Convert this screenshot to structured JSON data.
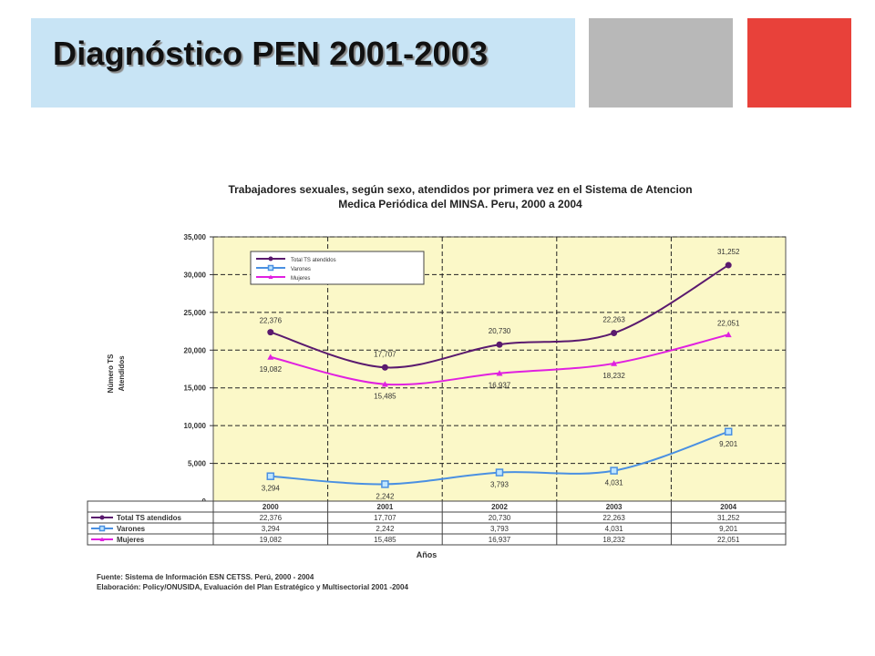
{
  "slide": {
    "title": "Diagnóstico PEN 2001-2003",
    "colors": {
      "title_box": "#c8e4f5",
      "gray_block": "#b8b8b8",
      "red_block": "#e8413a"
    }
  },
  "chart_data": {
    "type": "line",
    "title_line1": "Trabajadores sexuales, según sexo, atendidos por primera vez en el Sistema de Atencion",
    "title_line2": "Medica Periódica del MINSA. Peru, 2000 a 2004",
    "ylabel_line1": "Número TS",
    "ylabel_line2": "Atendidos",
    "xlabel": "Años",
    "ylim": [
      0,
      35000
    ],
    "yticks": [
      0,
      5000,
      10000,
      15000,
      20000,
      25000,
      30000,
      35000
    ],
    "ytick_labels": [
      "0",
      "5,000",
      "10,000",
      "15,000",
      "20,000",
      "25,000",
      "30,000",
      "35,000"
    ],
    "categories": [
      "2000",
      "2001",
      "2002",
      "2003",
      "2004"
    ],
    "grid": true,
    "legend_position": "top-left",
    "plot_background": "#fbf8c8",
    "series": [
      {
        "name": "Total TS atendidos",
        "color": "#5a1a6e",
        "marker": "circle",
        "values": [
          22376,
          17707,
          20730,
          22263,
          31252
        ],
        "labels": [
          "22,376",
          "17,707",
          "20,730",
          "22,263",
          "31,252"
        ]
      },
      {
        "name": "Varones",
        "color": "#4a90e2",
        "marker": "square",
        "values": [
          3294,
          2242,
          3793,
          4031,
          9201
        ],
        "labels": [
          "3,294",
          "2,242",
          "3,793",
          "4,031",
          "9,201"
        ]
      },
      {
        "name": "Mujeres",
        "color": "#e020e0",
        "marker": "triangle",
        "values": [
          19082,
          15485,
          16937,
          18232,
          22051
        ],
        "labels": [
          "19,082",
          "15,485",
          "16,937",
          "18,232",
          "22,051"
        ]
      }
    ]
  },
  "footnotes": {
    "source": "Fuente: Sistema de Información ESN CETSS. Perú, 2000 - 2004",
    "elaboration": "Elaboración: Policy/ONUSIDA, Evaluación del Plan Estratégico y Multisectorial 2001 -2004"
  }
}
